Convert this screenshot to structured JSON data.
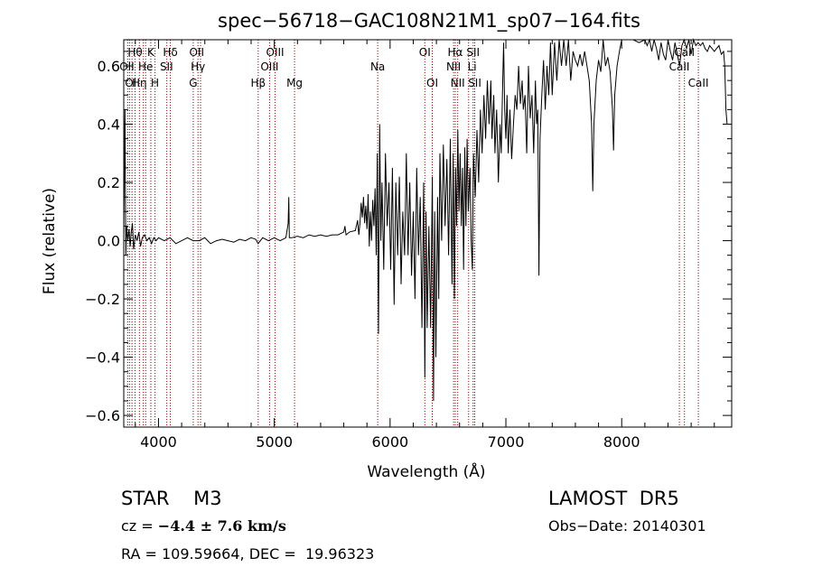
{
  "chart_data": {
    "type": "line",
    "title": "spec−56718−GAC108N21M1_sp07−164.fits",
    "xlabel": "Wavelength (Å)",
    "ylabel": "Flux (relative)",
    "xlim": [
      3700,
      8950
    ],
    "ylim": [
      -0.64,
      0.69
    ],
    "x_ticks": [
      4000,
      5000,
      6000,
      7000,
      8000
    ],
    "y_ticks": [
      {
        "value": -0.6,
        "label": "−0.6"
      },
      {
        "value": -0.4,
        "label": "−0.4"
      },
      {
        "value": -0.2,
        "label": "−0.2"
      },
      {
        "value": 0.0,
        "label": "0.0"
      },
      {
        "value": 0.2,
        "label": "0.2"
      },
      {
        "value": 0.4,
        "label": "0.4"
      },
      {
        "value": 0.6,
        "label": "0.6"
      }
    ],
    "series": [
      {
        "color": "#000000",
        "points": [
          [
            3700,
            0.02
          ],
          [
            3710,
            0.45
          ],
          [
            3718,
            -0.05
          ],
          [
            3725,
            0.05
          ],
          [
            3735,
            0.0
          ],
          [
            3745,
            0.04
          ],
          [
            3755,
            -0.02
          ],
          [
            3765,
            0.03
          ],
          [
            3775,
            0.06
          ],
          [
            3785,
            -0.03
          ],
          [
            3800,
            0.02
          ],
          [
            3815,
            0.0
          ],
          [
            3830,
            0.03
          ],
          [
            3845,
            -0.02
          ],
          [
            3860,
            0.01
          ],
          [
            3880,
            0.02
          ],
          [
            3900,
            0.0
          ],
          [
            3920,
            0.01
          ],
          [
            3940,
            -0.01
          ],
          [
            3960,
            0.01
          ],
          [
            3980,
            0.0
          ],
          [
            4000,
            0.01
          ],
          [
            4050,
            0.0
          ],
          [
            4100,
            0.01
          ],
          [
            4150,
            -0.01
          ],
          [
            4200,
            0.0
          ],
          [
            4250,
            0.01
          ],
          [
            4300,
            0.0
          ],
          [
            4350,
            0.0
          ],
          [
            4400,
            0.01
          ],
          [
            4450,
            -0.01
          ],
          [
            4500,
            0.0
          ],
          [
            4550,
            0.005
          ],
          [
            4600,
            0.0
          ],
          [
            4650,
            -0.005
          ],
          [
            4700,
            0.005
          ],
          [
            4750,
            0.0
          ],
          [
            4800,
            0.01
          ],
          [
            4840,
            0.005
          ],
          [
            4860,
            -0.01
          ],
          [
            4900,
            0.01
          ],
          [
            4950,
            0.0
          ],
          [
            5000,
            0.01
          ],
          [
            5050,
            0.0
          ],
          [
            5100,
            0.01
          ],
          [
            5120,
            0.06
          ],
          [
            5125,
            0.15
          ],
          [
            5130,
            0.01
          ],
          [
            5150,
            0.01
          ],
          [
            5200,
            0.015
          ],
          [
            5250,
            0.01
          ],
          [
            5300,
            0.02
          ],
          [
            5350,
            0.015
          ],
          [
            5400,
            0.02
          ],
          [
            5450,
            0.015
          ],
          [
            5500,
            0.02
          ],
          [
            5550,
            0.02
          ],
          [
            5600,
            0.03
          ],
          [
            5610,
            0.05
          ],
          [
            5620,
            0.02
          ],
          [
            5650,
            0.03
          ],
          [
            5700,
            0.035
          ],
          [
            5720,
            0.07
          ],
          [
            5730,
            0.02
          ],
          [
            5740,
            0.06
          ],
          [
            5750,
            0.13
          ],
          [
            5760,
            0.08
          ],
          [
            5770,
            0.15
          ],
          [
            5780,
            0.06
          ],
          [
            5790,
            0.12
          ],
          [
            5800,
            0.04
          ],
          [
            5810,
            0.16
          ],
          [
            5820,
            -0.02
          ],
          [
            5830,
            0.1
          ],
          [
            5840,
            0.0
          ],
          [
            5850,
            0.14
          ],
          [
            5860,
            0.05
          ],
          [
            5870,
            0.18
          ],
          [
            5880,
            -0.05
          ],
          [
            5890,
            0.3
          ],
          [
            5900,
            -0.32
          ],
          [
            5910,
            0.4
          ],
          [
            5920,
            0.0
          ],
          [
            5930,
            0.2
          ],
          [
            5945,
            -0.1
          ],
          [
            5960,
            0.3
          ],
          [
            5975,
            0.05
          ],
          [
            5990,
            0.2
          ],
          [
            6005,
            -0.1
          ],
          [
            6020,
            0.25
          ],
          [
            6035,
            -0.22
          ],
          [
            6050,
            0.2
          ],
          [
            6065,
            -0.05
          ],
          [
            6080,
            0.22
          ],
          [
            6095,
            -0.15
          ],
          [
            6110,
            0.1
          ],
          [
            6125,
            -0.05
          ],
          [
            6140,
            0.3
          ],
          [
            6155,
            -0.05
          ],
          [
            6170,
            0.2
          ],
          [
            6185,
            -0.12
          ],
          [
            6200,
            0.1
          ],
          [
            6215,
            -0.2
          ],
          [
            6230,
            0.25
          ],
          [
            6245,
            -0.05
          ],
          [
            6260,
            0.15
          ],
          [
            6275,
            -0.3
          ],
          [
            6290,
            0.2
          ],
          [
            6300,
            -0.47
          ],
          [
            6310,
            0.1
          ],
          [
            6320,
            -0.3
          ],
          [
            6335,
            0.05
          ],
          [
            6350,
            -0.3
          ],
          [
            6365,
            0.22
          ],
          [
            6375,
            -0.55
          ],
          [
            6385,
            0.1
          ],
          [
            6395,
            -0.4
          ],
          [
            6410,
            0.15
          ],
          [
            6420,
            -0.2
          ],
          [
            6430,
            0.3
          ],
          [
            6445,
            0.0
          ],
          [
            6460,
            0.33
          ],
          [
            6475,
            0.05
          ],
          [
            6490,
            0.28
          ],
          [
            6505,
            -0.05
          ],
          [
            6520,
            0.35
          ],
          [
            6535,
            -0.15
          ],
          [
            6545,
            0.3
          ],
          [
            6555,
            -0.2
          ],
          [
            6565,
            0.25
          ],
          [
            6575,
            0.05
          ],
          [
            6585,
            0.38
          ],
          [
            6595,
            0.1
          ],
          [
            6605,
            0.3
          ],
          [
            6615,
            0.05
          ],
          [
            6625,
            0.25
          ],
          [
            6635,
            -0.1
          ],
          [
            6645,
            0.32
          ],
          [
            6655,
            0.05
          ],
          [
            6665,
            0.35
          ],
          [
            6675,
            0.1
          ],
          [
            6690,
            0.25
          ],
          [
            6700,
            0.0
          ],
          [
            6710,
            -0.1
          ],
          [
            6720,
            0.3
          ],
          [
            6735,
            0.15
          ],
          [
            6750,
            0.38
          ],
          [
            6765,
            0.2
          ],
          [
            6780,
            0.45
          ],
          [
            6795,
            0.3
          ],
          [
            6810,
            0.5
          ],
          [
            6825,
            0.35
          ],
          [
            6840,
            0.55
          ],
          [
            6855,
            0.4
          ],
          [
            6870,
            0.55
          ],
          [
            6880,
            0.35
          ],
          [
            6895,
            0.5
          ],
          [
            6905,
            0.3
          ],
          [
            6920,
            0.45
          ],
          [
            6935,
            0.2
          ],
          [
            6950,
            0.4
          ],
          [
            6960,
            0.3
          ],
          [
            6970,
            0.5
          ],
          [
            6980,
            0.68
          ],
          [
            6990,
            0.45
          ],
          [
            7000,
            0.35
          ],
          [
            7010,
            0.5
          ],
          [
            7020,
            0.3
          ],
          [
            7035,
            0.45
          ],
          [
            7050,
            0.28
          ],
          [
            7065,
            0.4
          ],
          [
            7080,
            0.5
          ],
          [
            7095,
            0.45
          ],
          [
            7110,
            0.6
          ],
          [
            7125,
            0.47
          ],
          [
            7140,
            0.55
          ],
          [
            7150,
            0.45
          ],
          [
            7165,
            0.5
          ],
          [
            7180,
            0.3
          ],
          [
            7195,
            0.6
          ],
          [
            7210,
            0.42
          ],
          [
            7225,
            0.5
          ],
          [
            7240,
            0.3
          ],
          [
            7255,
            0.55
          ],
          [
            7265,
            0.4
          ],
          [
            7275,
            0.45
          ],
          [
            7285,
            -0.12
          ],
          [
            7295,
            0.35
          ],
          [
            7310,
            0.5
          ],
          [
            7325,
            0.62
          ],
          [
            7340,
            0.45
          ],
          [
            7355,
            0.6
          ],
          [
            7370,
            0.5
          ],
          [
            7385,
            0.68
          ],
          [
            7400,
            0.5
          ],
          [
            7420,
            0.68
          ],
          [
            7440,
            0.55
          ],
          [
            7460,
            0.69
          ],
          [
            7480,
            0.6
          ],
          [
            7500,
            0.69
          ],
          [
            7520,
            0.6
          ],
          [
            7540,
            0.69
          ],
          [
            7560,
            0.55
          ],
          [
            7580,
            0.65
          ],
          [
            7600,
            0.62
          ],
          [
            7620,
            0.6
          ],
          [
            7640,
            0.64
          ],
          [
            7660,
            0.6
          ],
          [
            7680,
            0.65
          ],
          [
            7700,
            0.6
          ],
          [
            7720,
            0.55
          ],
          [
            7740,
            0.4
          ],
          [
            7750,
            0.17
          ],
          [
            7760,
            0.4
          ],
          [
            7780,
            0.55
          ],
          [
            7800,
            0.62
          ],
          [
            7820,
            0.58
          ],
          [
            7840,
            0.69
          ],
          [
            7860,
            0.6
          ],
          [
            7880,
            0.63
          ],
          [
            7900,
            0.58
          ],
          [
            7920,
            0.45
          ],
          [
            7930,
            0.31
          ],
          [
            7940,
            0.5
          ],
          [
            7960,
            0.6
          ],
          [
            7980,
            0.65
          ],
          [
            8000,
            0.69
          ],
          [
            8050,
            0.69
          ],
          [
            8100,
            0.69
          ],
          [
            8150,
            0.68
          ],
          [
            8200,
            0.69
          ],
          [
            8220,
            0.67
          ],
          [
            8240,
            0.69
          ],
          [
            8260,
            0.65
          ],
          [
            8280,
            0.69
          ],
          [
            8300,
            0.66
          ],
          [
            8320,
            0.62
          ],
          [
            8340,
            0.68
          ],
          [
            8360,
            0.64
          ],
          [
            8380,
            0.62
          ],
          [
            8400,
            0.69
          ],
          [
            8420,
            0.65
          ],
          [
            8440,
            0.62
          ],
          [
            8460,
            0.68
          ],
          [
            8480,
            0.64
          ],
          [
            8500,
            0.6
          ],
          [
            8520,
            0.67
          ],
          [
            8540,
            0.69
          ],
          [
            8560,
            0.66
          ],
          [
            8580,
            0.69
          ],
          [
            8600,
            0.64
          ],
          [
            8620,
            0.69
          ],
          [
            8640,
            0.67
          ],
          [
            8660,
            0.68
          ],
          [
            8680,
            0.67
          ],
          [
            8700,
            0.68
          ],
          [
            8720,
            0.66
          ],
          [
            8740,
            0.65
          ],
          [
            8760,
            0.67
          ],
          [
            8780,
            0.66
          ],
          [
            8800,
            0.65
          ],
          [
            8820,
            0.66
          ],
          [
            8840,
            0.67
          ],
          [
            8860,
            0.64
          ],
          [
            8880,
            0.65
          ],
          [
            8890,
            0.6
          ],
          [
            8900,
            0.45
          ],
          [
            8910,
            0.4
          ]
        ]
      }
    ],
    "line_markers": {
      "color": "#8b0000",
      "positions": [
        3734,
        3750,
        3771,
        3798,
        3835,
        3869,
        3889,
        3934,
        3970,
        4072,
        4102,
        4300,
        4341,
        4363,
        4861,
        4959,
        5007,
        5175,
        5893,
        6300,
        6364,
        6548,
        6563,
        6584,
        6678,
        6717,
        6731,
        8498,
        8542,
        8662
      ]
    },
    "line_labels": [
      {
        "text": "Hθ",
        "w": 3798,
        "row": 1
      },
      {
        "text": "K",
        "w": 3934,
        "row": 1
      },
      {
        "text": "Hδ",
        "w": 4102,
        "row": 1
      },
      {
        "text": "OII",
        "w": 4330,
        "row": 1
      },
      {
        "text": "OIII",
        "w": 5007,
        "row": 1
      },
      {
        "text": "OI",
        "w": 6300,
        "row": 1
      },
      {
        "text": "Hα",
        "w": 6563,
        "row": 1
      },
      {
        "text": "SII",
        "w": 6717,
        "row": 1
      },
      {
        "text": "CaII",
        "w": 8542,
        "row": 1
      },
      {
        "text": "OII",
        "w": 3727,
        "row": 2
      },
      {
        "text": "He",
        "w": 3889,
        "row": 2
      },
      {
        "text": "SII",
        "w": 4069,
        "row": 2
      },
      {
        "text": "Hγ",
        "w": 4341,
        "row": 2
      },
      {
        "text": "OIII",
        "w": 4959,
        "row": 2
      },
      {
        "text": "Na",
        "w": 5893,
        "row": 2
      },
      {
        "text": "NII",
        "w": 6548,
        "row": 2
      },
      {
        "text": "Li",
        "w": 6708,
        "row": 2
      },
      {
        "text": "CaII",
        "w": 8498,
        "row": 2
      },
      {
        "text": "OI",
        "w": 3760,
        "row": 3
      },
      {
        "text": "Hη",
        "w": 3835,
        "row": 3
      },
      {
        "text": "H",
        "w": 3969,
        "row": 3
      },
      {
        "text": "G",
        "w": 4300,
        "row": 3
      },
      {
        "text": "Hβ",
        "w": 4861,
        "row": 3
      },
      {
        "text": "Mg",
        "w": 5175,
        "row": 3
      },
      {
        "text": "OI",
        "w": 6364,
        "row": 3
      },
      {
        "text": "NII",
        "w": 6584,
        "row": 3
      },
      {
        "text": "SII",
        "w": 6731,
        "row": 3
      },
      {
        "text": "CaII",
        "w": 8662,
        "row": 3
      }
    ]
  },
  "info": {
    "object": "STAR    M3",
    "survey": "LAMOST  DR5",
    "cz_prefix": "cz = ",
    "cz_value": "−4.4 ± 7.6 km/s",
    "obs_date": "Obs−Date: 20140301",
    "coords": "RA = 109.59664, DEC =  19.96323"
  }
}
